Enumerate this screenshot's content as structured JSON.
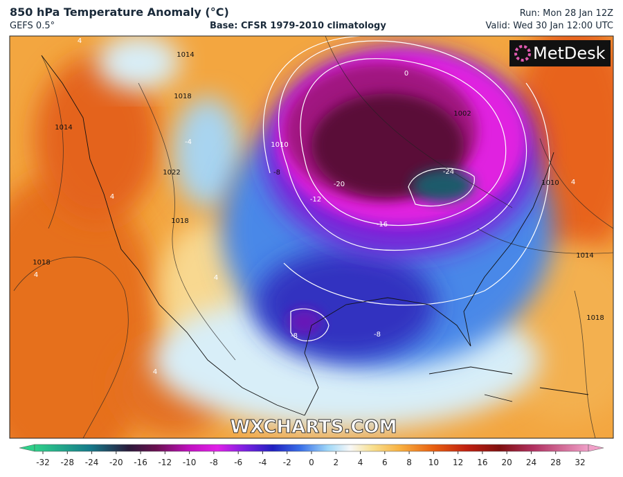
{
  "header": {
    "title": "850 hPa Temperature Anomaly (°C)",
    "model": "GEFS 0.5°",
    "base": "Base: CFSR 1979-2010 climatology",
    "run": "Run: Mon 28 Jan 12Z",
    "valid": "Valid: Wed 30 Jan 12:00 UTC"
  },
  "logo": "MetDesk",
  "watermark": "WXCHARTS.COM",
  "map": {
    "labels": [
      "1014",
      "1018",
      "1014",
      "1022",
      "1018",
      "1018",
      "4",
      "4",
      "4",
      "1010",
      "-8",
      "-12",
      "-20",
      "-16",
      "-24",
      "0",
      "1002",
      "1010",
      "1014",
      "1018",
      "-8",
      "-8",
      "4",
      "4",
      "-4",
      "4"
    ]
  },
  "colorbar": {
    "ticks": [
      -32,
      -28,
      -24,
      -20,
      -16,
      -12,
      -10,
      -8,
      -6,
      -4,
      -2,
      0,
      2,
      4,
      6,
      8,
      10,
      12,
      16,
      20,
      24,
      28,
      32
    ]
  }
}
